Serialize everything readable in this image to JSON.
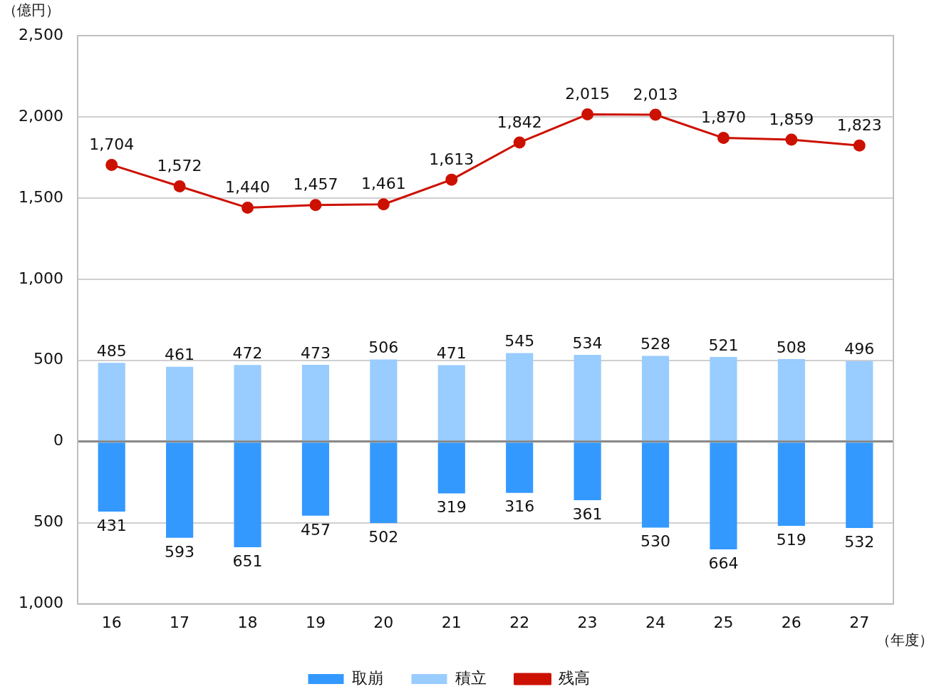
{
  "chart_data": {
    "type": "bar",
    "ylabel": "（億円）",
    "xlabel": "（年度）",
    "categories": [
      "16",
      "17",
      "18",
      "19",
      "20",
      "21",
      "22",
      "23",
      "24",
      "25",
      "26",
      "27"
    ],
    "ylim": [
      -1000,
      2500
    ],
    "yticks": [
      {
        "value": -1000,
        "label": "1,000"
      },
      {
        "value": -500,
        "label": "500"
      },
      0,
      500,
      {
        "value": 1000,
        "label": "1,000"
      },
      {
        "value": 1500,
        "label": "1,500"
      },
      {
        "value": 2000,
        "label": "2,000"
      },
      {
        "value": 2500,
        "label": "2,500"
      }
    ],
    "grid": "y",
    "legend": "bottom",
    "series": [
      {
        "name": "取崩",
        "color": "#3399ff",
        "base": [
          -431,
          -593,
          -651,
          -457,
          -502,
          -319,
          -316,
          -361,
          -530,
          -664,
          -519,
          -532
        ],
        "values": [
          431,
          593,
          651,
          457,
          502,
          319,
          316,
          361,
          530,
          664,
          519,
          532
        ],
        "value_labels": [
          "431",
          "593",
          "651",
          "457",
          "502",
          "319",
          "316",
          "361",
          "530",
          "664",
          "519",
          "532"
        ]
      },
      {
        "name": "積立",
        "color": "#99ccff",
        "values": [
          485,
          461,
          472,
          473,
          506,
          471,
          545,
          534,
          528,
          521,
          508,
          496
        ],
        "value_labels": [
          "485",
          "461",
          "472",
          "473",
          "506",
          "471",
          "545",
          "534",
          "528",
          "521",
          "508",
          "496"
        ]
      },
      {
        "name": "残高",
        "type": "line",
        "color": "#cc1100",
        "marker": "circle",
        "values": [
          1704,
          1572,
          1440,
          1457,
          1461,
          1613,
          1842,
          2015,
          2013,
          1870,
          1859,
          1823
        ],
        "value_labels": [
          "1,704",
          "1,572",
          "1,440",
          "1,457",
          "1,461",
          "1,613",
          "1,842",
          "2,015",
          "2,013",
          "1,870",
          "1,859",
          "1,823"
        ]
      }
    ]
  }
}
